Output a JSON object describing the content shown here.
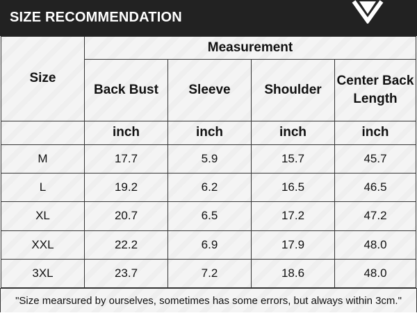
{
  "header": {
    "title": "SIZE RECOMMENDATION",
    "mark_icon": "chevron-down-icon"
  },
  "table": {
    "size_header": "Size",
    "group_header": "Measurement",
    "columns": [
      {
        "label": "Back Bust",
        "unit": "inch"
      },
      {
        "label": "Sleeve",
        "unit": "inch"
      },
      {
        "label": "Shoulder",
        "unit": "inch"
      },
      {
        "label": "Center Back Length",
        "unit": "inch"
      }
    ],
    "rows": [
      {
        "size": "M",
        "values": [
          "17.7",
          "5.9",
          "15.7",
          "45.7"
        ]
      },
      {
        "size": "L",
        "values": [
          "19.2",
          "6.2",
          "16.5",
          "46.5"
        ]
      },
      {
        "size": "XL",
        "values": [
          "20.7",
          "6.5",
          "17.2",
          "47.2"
        ]
      },
      {
        "size": "XXL",
        "values": [
          "22.2",
          "6.9",
          "17.9",
          "48.0"
        ]
      },
      {
        "size": "3XL",
        "values": [
          "23.7",
          "7.2",
          "18.6",
          "48.0"
        ]
      }
    ]
  },
  "note": "\"Size mearsured by ourselves, sometimes has some errors, but always within 3cm.\""
}
